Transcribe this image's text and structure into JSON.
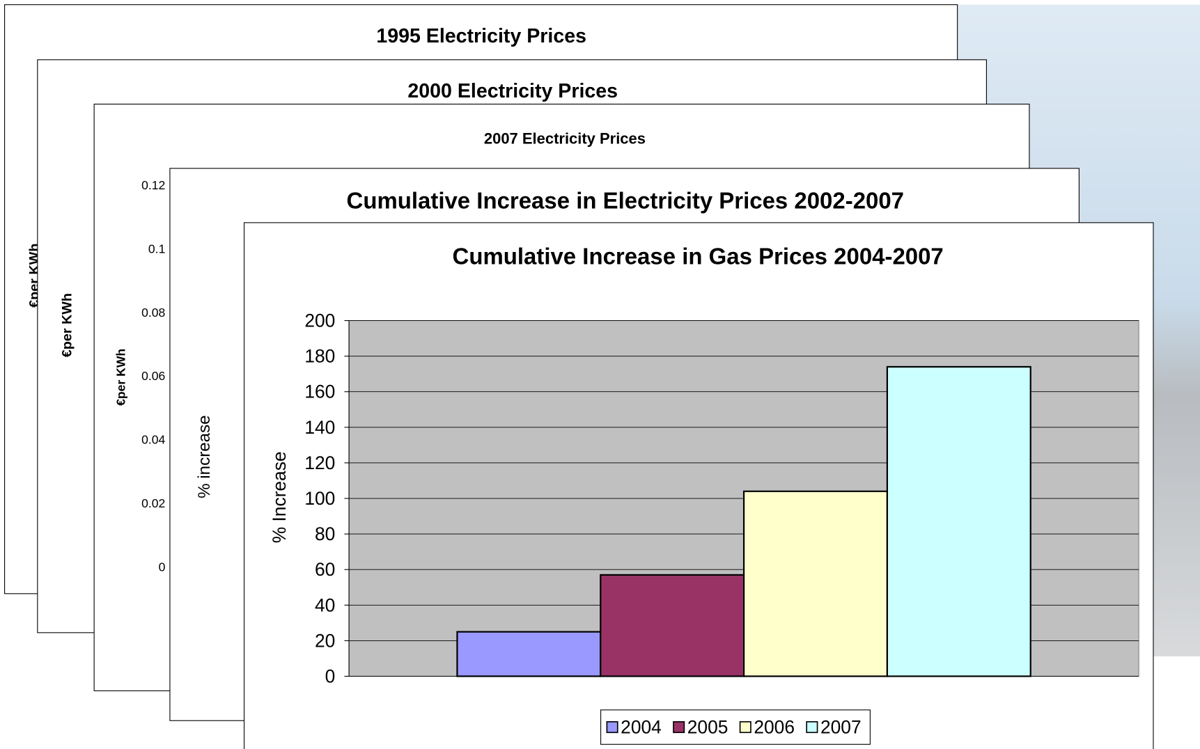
{
  "chart_data": [
    {
      "type": "bar",
      "title": "1995 Electricity Prices",
      "y_label": "€per KWh"
    },
    {
      "type": "bar",
      "title": "2000 Electricity Prices",
      "y_label": "€per KWh"
    },
    {
      "type": "bar",
      "title": "2007 Electricity Prices",
      "y_label": "€per KWh",
      "ylim": [
        0,
        0.12
      ],
      "yticks": [
        0,
        0.02,
        0.04,
        0.06,
        0.08,
        0.1,
        0.12
      ]
    },
    {
      "type": "bar",
      "title": "Cumulative Increase in Electricity Prices 2002-2007",
      "y_label": "% increase"
    },
    {
      "type": "bar",
      "title": "Cumulative Increase in Gas Prices 2004-2007",
      "y_label": "% Increase",
      "categories": [
        null
      ],
      "series": [
        {
          "name": "2004",
          "color": "#9999ff",
          "values": [
            25
          ]
        },
        {
          "name": "2005",
          "color": "#993366",
          "values": [
            57
          ]
        },
        {
          "name": "2006",
          "color": "#ffffcc",
          "values": [
            104
          ]
        },
        {
          "name": "2007",
          "color": "#ccffff",
          "values": [
            174
          ]
        }
      ],
      "ylim": [
        0,
        200
      ],
      "yticks": [
        0,
        20,
        40,
        60,
        80,
        100,
        120,
        140,
        160,
        180,
        200
      ],
      "grid": true,
      "legend": "bottom"
    }
  ]
}
